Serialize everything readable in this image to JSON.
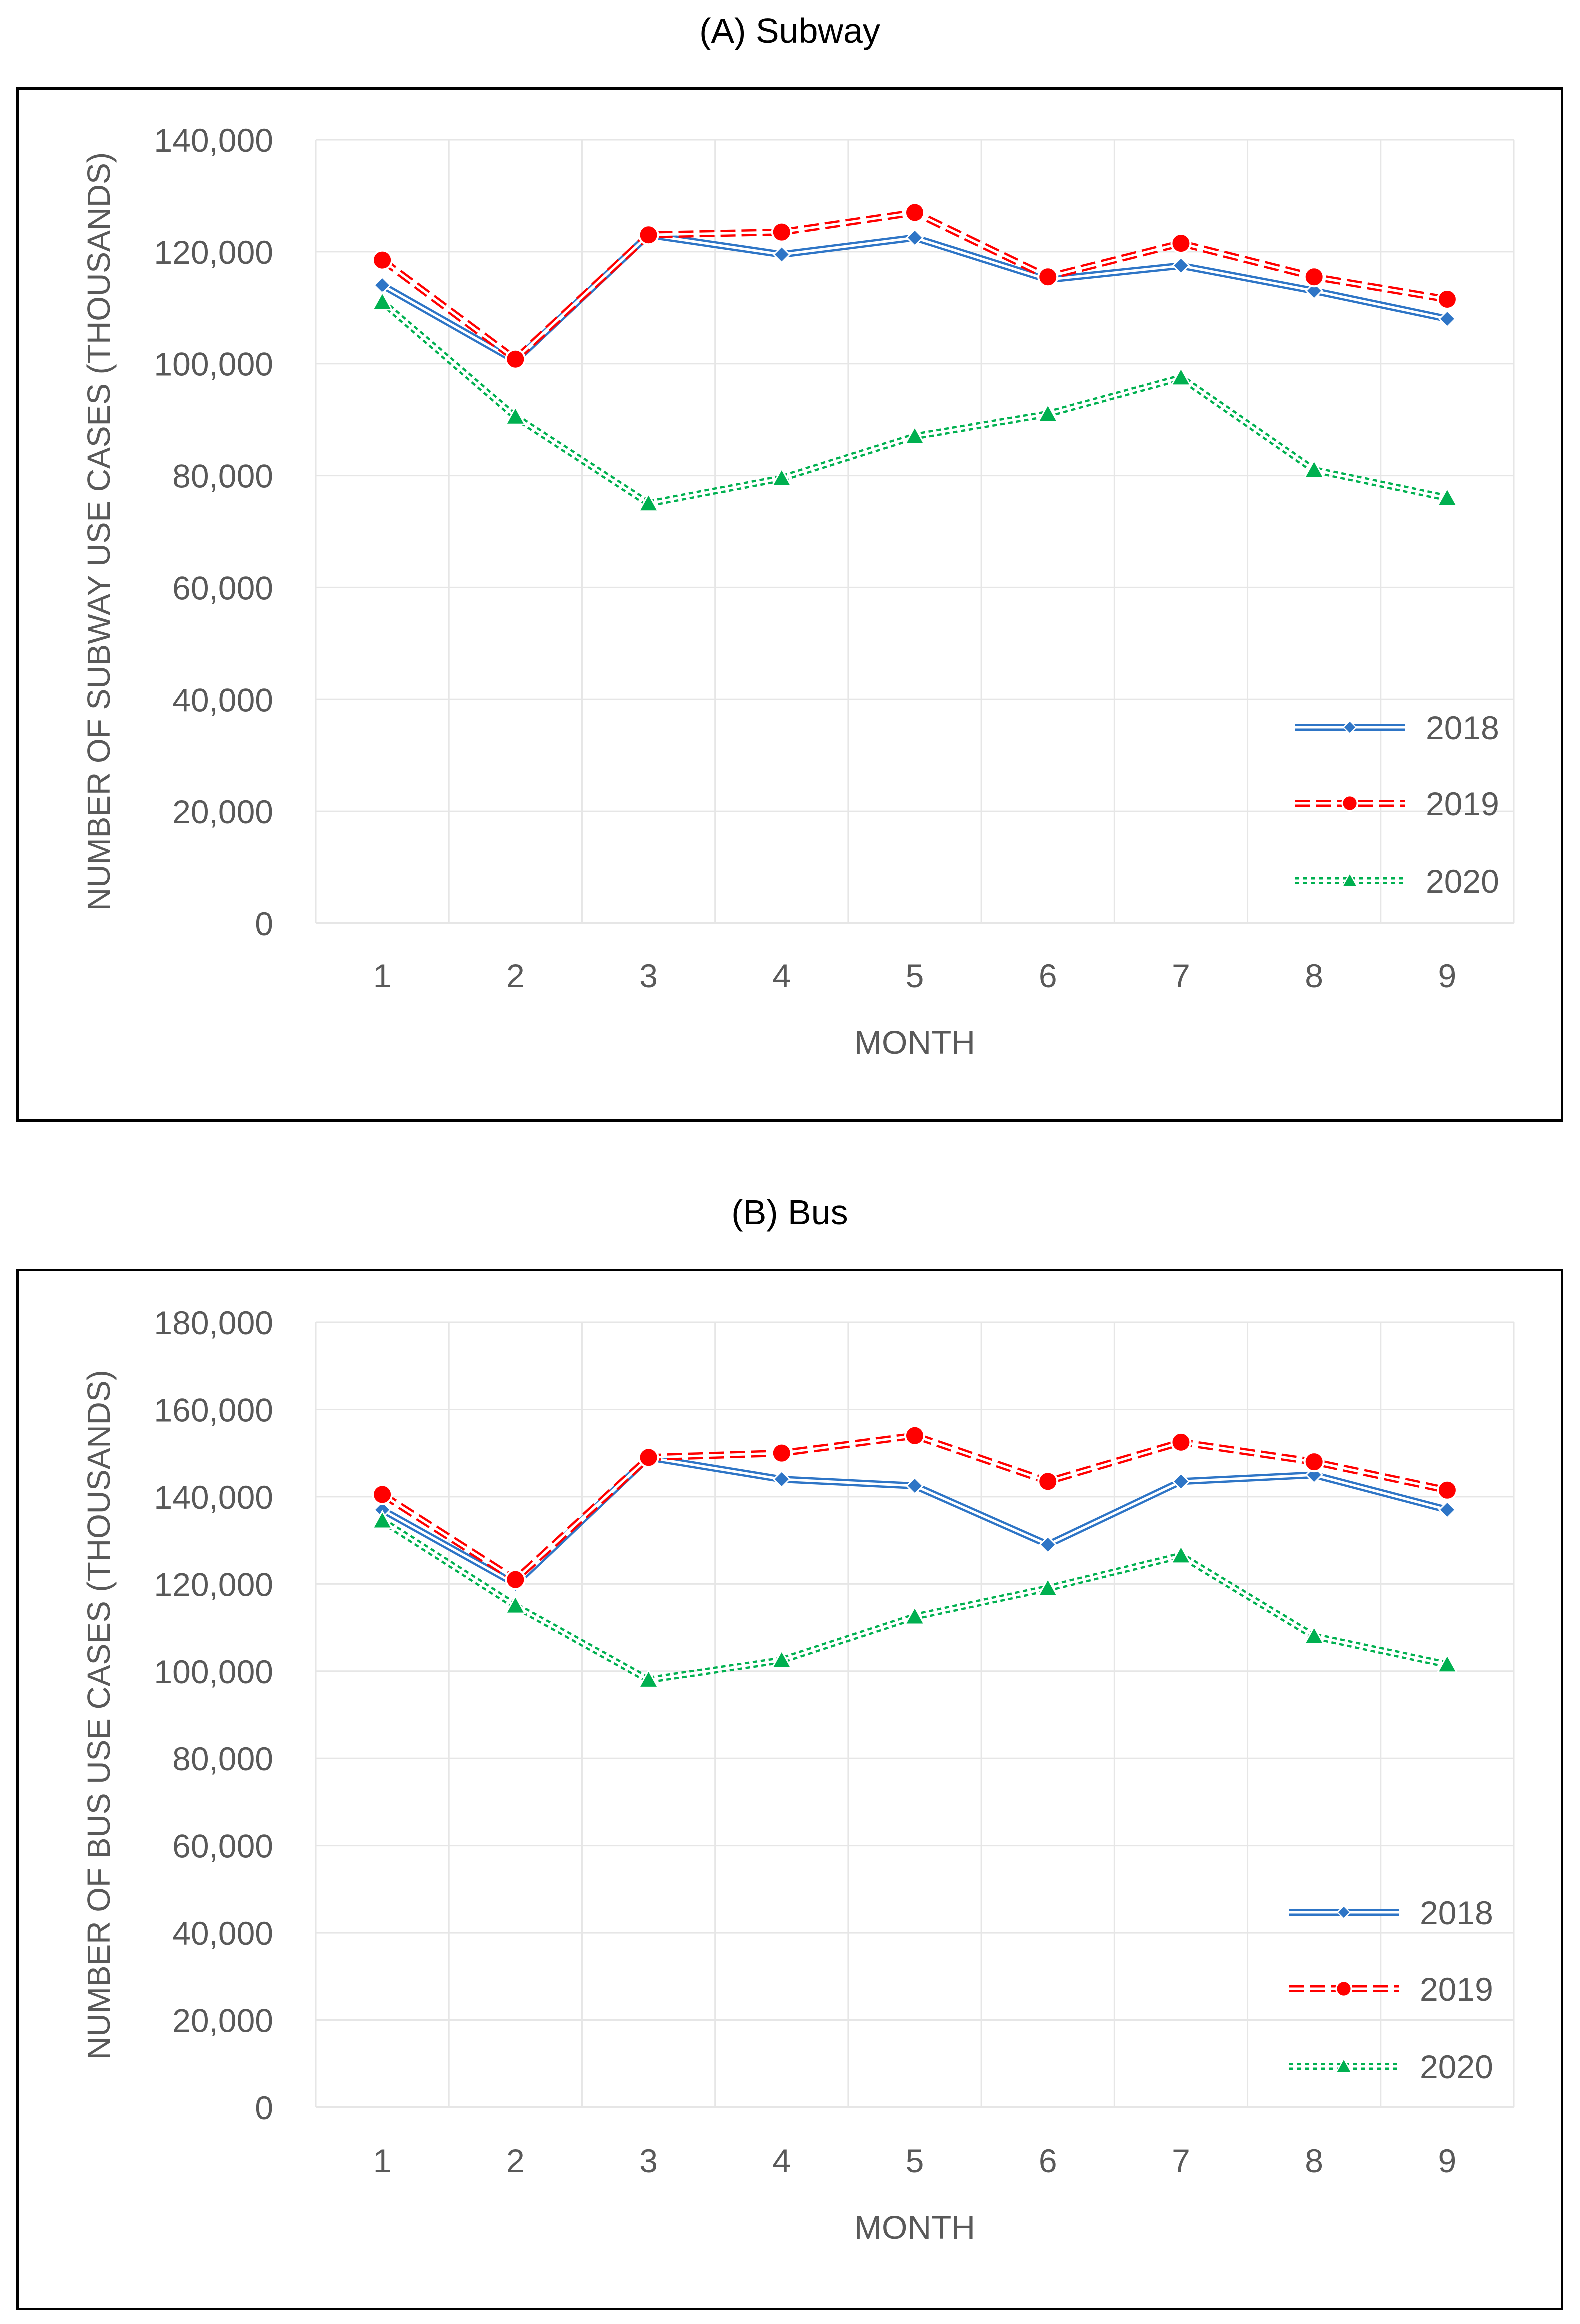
{
  "colors": {
    "s2018": "#2E75C6",
    "s2019": "#FF0000",
    "s2020": "#00B050",
    "grid": "#E6E6E6",
    "text": "#595959"
  },
  "chart_data": [
    {
      "id": "subway",
      "type": "line",
      "panel_title": "(A) Subway",
      "xlabel": "MONTH",
      "ylabel": "NUMBER OF SUBWAY USE CASES (THOUSANDS)",
      "x": [
        1,
        2,
        3,
        4,
        5,
        6,
        7,
        8,
        9
      ],
      "ylim": [
        0,
        140000
      ],
      "yticks": [
        0,
        20000,
        40000,
        60000,
        80000,
        100000,
        120000,
        140000
      ],
      "ytick_labels": [
        "0",
        "20,000",
        "40,000",
        "60,000",
        "80,000",
        "100,000",
        "120,000",
        "140,000"
      ],
      "grid": true,
      "legend_position": "lower-right",
      "series": [
        {
          "name": "2018",
          "color": "#2E75C6",
          "marker": "diamond",
          "line": "double",
          "values": [
            114000,
            100500,
            123000,
            119500,
            122500,
            115000,
            117500,
            113000,
            108000
          ]
        },
        {
          "name": "2019",
          "color": "#FF0000",
          "marker": "circle",
          "line": "double-dashed",
          "values": [
            118500,
            100800,
            123000,
            123500,
            127000,
            115500,
            121500,
            115500,
            111500
          ]
        },
        {
          "name": "2020",
          "color": "#00B050",
          "marker": "triangle",
          "line": "double-dotted",
          "values": [
            111000,
            90500,
            75000,
            79500,
            87000,
            91000,
            97500,
            81000,
            76000
          ]
        }
      ]
    },
    {
      "id": "bus",
      "type": "line",
      "panel_title": "(B) Bus",
      "xlabel": "MONTH",
      "ylabel": "NUMBER OF BUS USE CASES (THOUSANDS)",
      "x": [
        1,
        2,
        3,
        4,
        5,
        6,
        7,
        8,
        9
      ],
      "ylim": [
        0,
        180000
      ],
      "yticks": [
        0,
        20000,
        40000,
        60000,
        80000,
        100000,
        120000,
        140000,
        160000,
        180000
      ],
      "ytick_labels": [
        "0",
        "20,000",
        "40,000",
        "60,000",
        "80,000",
        "100,000",
        "120,000",
        "140,000",
        "160,000",
        "180,000"
      ],
      "grid": true,
      "legend_position": "lower-right",
      "series": [
        {
          "name": "2018",
          "color": "#2E75C6",
          "marker": "diamond",
          "line": "double",
          "values": [
            137000,
            120000,
            149000,
            144000,
            142500,
            129000,
            143500,
            145000,
            137000
          ]
        },
        {
          "name": "2019",
          "color": "#FF0000",
          "marker": "circle",
          "line": "double-dashed",
          "values": [
            140500,
            121000,
            149000,
            150000,
            154000,
            143500,
            152500,
            148000,
            141500
          ]
        },
        {
          "name": "2020",
          "color": "#00B050",
          "marker": "triangle",
          "line": "double-dotted",
          "values": [
            134500,
            115000,
            98000,
            102500,
            112500,
            119000,
            126500,
            108000,
            101500
          ]
        }
      ]
    }
  ]
}
